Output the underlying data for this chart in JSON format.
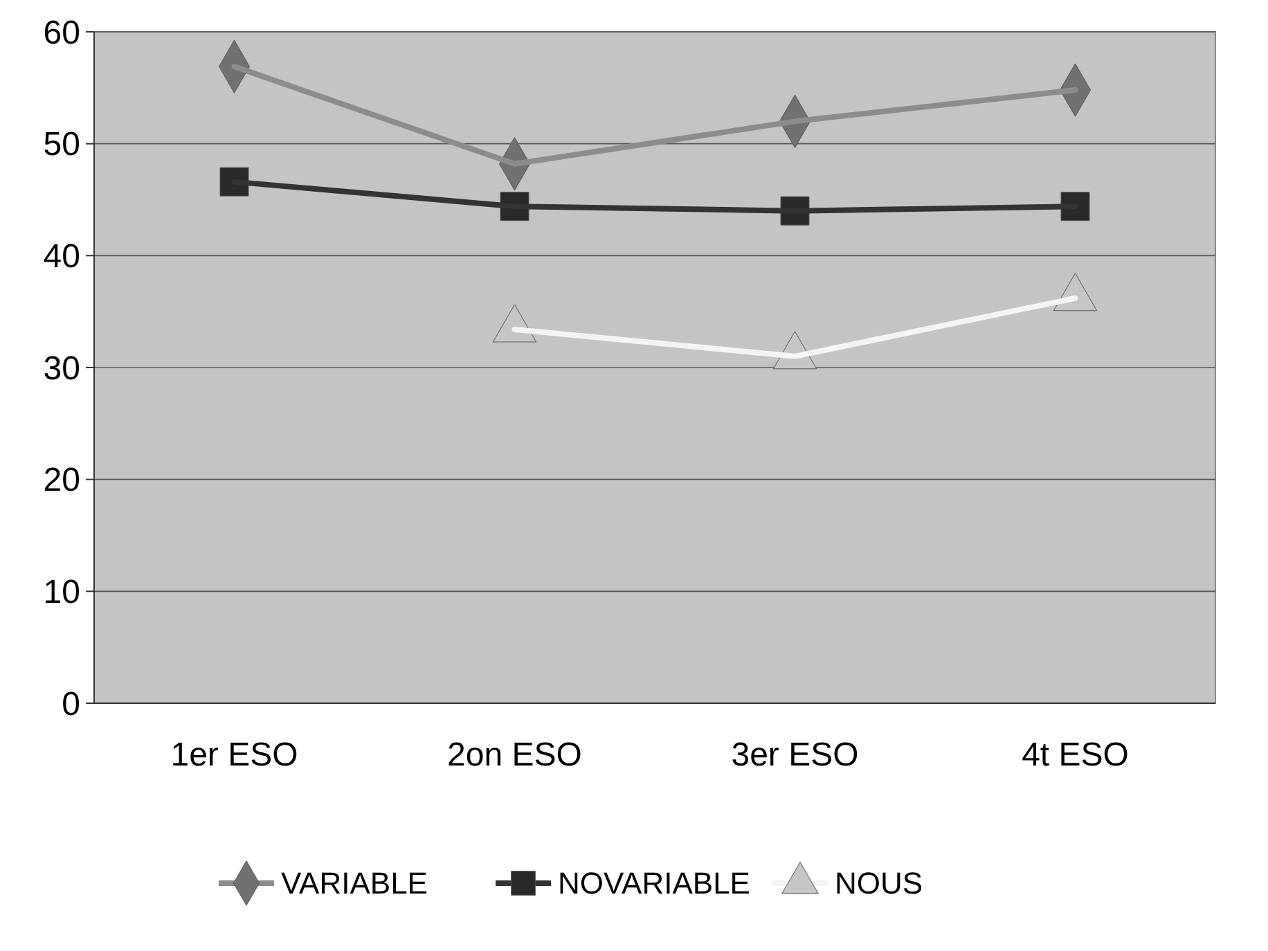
{
  "chart_data": {
    "type": "line",
    "categories": [
      "1er ESO",
      "2on ESO",
      "3er ESO",
      "4t ESO"
    ],
    "series": [
      {
        "name": "VARIABLE",
        "color": "#8c8c8c",
        "marker": "diamond",
        "values": [
          56.9,
          48.2,
          52.0,
          54.8
        ]
      },
      {
        "name": "NOVARIABLE",
        "color": "#333333",
        "marker": "square",
        "values": [
          46.6,
          44.4,
          44.0,
          44.4
        ]
      },
      {
        "name": "NOUS",
        "color": "#f4f4f4",
        "marker": "triangle",
        "values": [
          null,
          33.4,
          31.0,
          36.2
        ]
      }
    ],
    "ylim": [
      0,
      60
    ],
    "yticks": [
      0,
      10,
      20,
      30,
      40,
      50,
      60
    ],
    "grid": "y",
    "legend": "bottom"
  }
}
